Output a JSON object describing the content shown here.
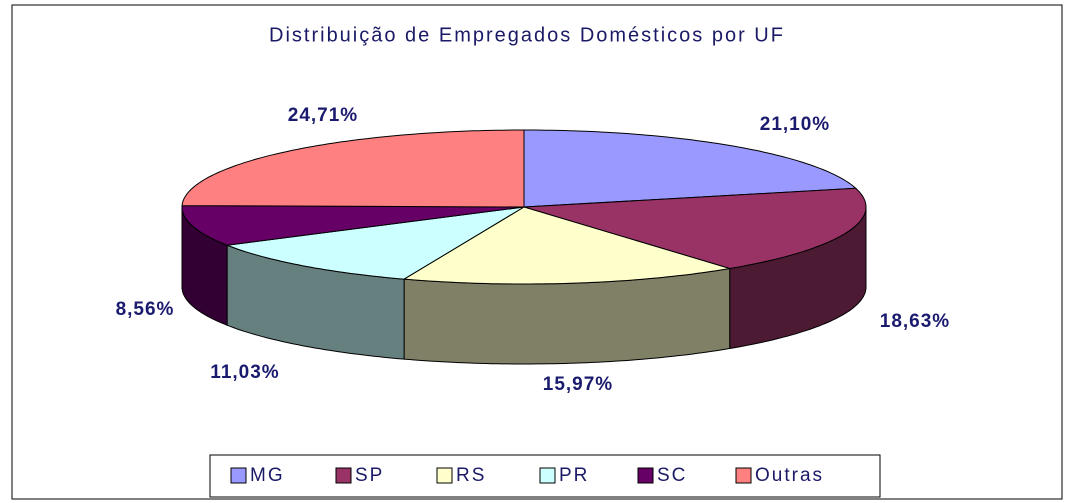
{
  "chart_data": {
    "type": "pie3d",
    "title": "Distribuição de Empregados Domésticos por UF",
    "categories": [
      "MG",
      "SP",
      "RS",
      "PR",
      "SC",
      "Outras"
    ],
    "values": [
      21.1,
      18.63,
      15.97,
      11.03,
      8.56,
      24.71
    ],
    "value_labels": [
      "21,10%",
      "18,63%",
      "15,97%",
      "11,03%",
      "8,56%",
      "24,71%"
    ],
    "colors": [
      "#9999ff",
      "#993366",
      "#ffffcc",
      "#ccffff",
      "#660066",
      "#ff8080"
    ],
    "legend": "bottom"
  }
}
